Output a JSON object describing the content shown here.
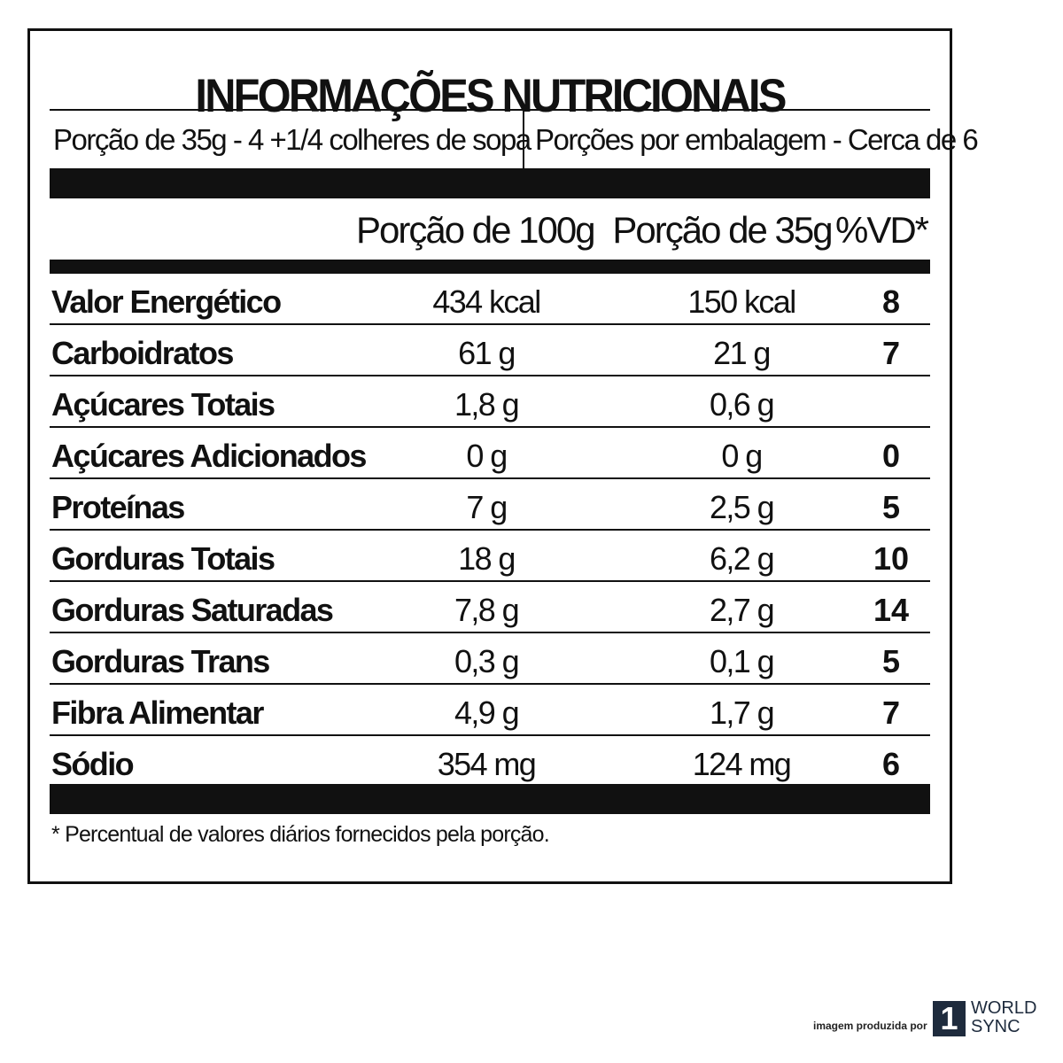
{
  "title": "INFORMAÇÕES NUTRICIONAIS",
  "serving": {
    "size": "Porção de 35g  - 4 +1/4 colheres de sopa",
    "per_package": "Porções por embalagem - Cerca de 6"
  },
  "columns": [
    "Porção de 100g",
    "Porção de 35g",
    "%VD*"
  ],
  "rows": [
    {
      "name": "Valor Energético",
      "per100": "434 kcal",
      "per35": "150 kcal",
      "vd": "8"
    },
    {
      "name": "Carboidratos",
      "per100": "61 g",
      "per35": "21 g",
      "vd": "7"
    },
    {
      "name": "Açúcares Totais",
      "per100": "1,8 g",
      "per35": "0,6 g",
      "vd": ""
    },
    {
      "name": "Açúcares Adicionados",
      "per100": "0 g",
      "per35": "0 g",
      "vd": "0"
    },
    {
      "name": "Proteínas",
      "per100": "7 g",
      "per35": "2,5 g",
      "vd": "5"
    },
    {
      "name": "Gorduras Totais",
      "per100": "18 g",
      "per35": "6,2 g",
      "vd": "10"
    },
    {
      "name": "Gorduras Saturadas",
      "per100": "7,8 g",
      "per35": "2,7 g",
      "vd": "14"
    },
    {
      "name": "Gorduras Trans",
      "per100": "0,3 g",
      "per35": "0,1 g",
      "vd": "5"
    },
    {
      "name": "Fibra Alimentar",
      "per100": "4,9 g",
      "per35": "1,7 g",
      "vd": "7"
    },
    {
      "name": "Sódio",
      "per100": "354 mg",
      "per35": "124 mg",
      "vd": "6"
    }
  ],
  "footnote": "* Percentual de valores diários fornecidos pela porção.",
  "credit": {
    "text": "imagem produzida por",
    "logo_number": "1",
    "logo_line1": "WORLD",
    "logo_line2": "SYNC"
  }
}
